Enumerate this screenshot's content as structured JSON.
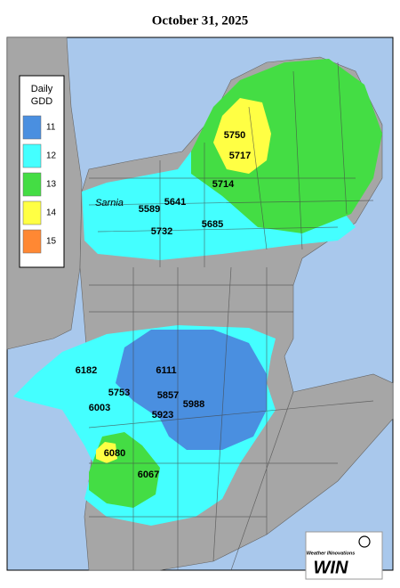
{
  "header": {
    "title": "October 31, 2025"
  },
  "legend": {
    "title": [
      "Daily",
      "GDD"
    ],
    "items": [
      {
        "label": 11,
        "color": "#4a8fe0"
      },
      {
        "label": 12,
        "color": "#44ffff"
      },
      {
        "label": 13,
        "color": "#44dd44"
      },
      {
        "label": 14,
        "color": "#ffff44"
      },
      {
        "label": 15,
        "color": "#ff8833"
      }
    ]
  },
  "places": [
    "Sarnia"
  ],
  "stations": [
    5750,
    5717,
    5714,
    5641,
    5589,
    5685,
    5732,
    6182,
    6111,
    5753,
    5857,
    5988,
    6003,
    5923,
    6080,
    6067
  ],
  "logo": {
    "tagline": "Weather INnovations",
    "name": "WIN"
  }
}
